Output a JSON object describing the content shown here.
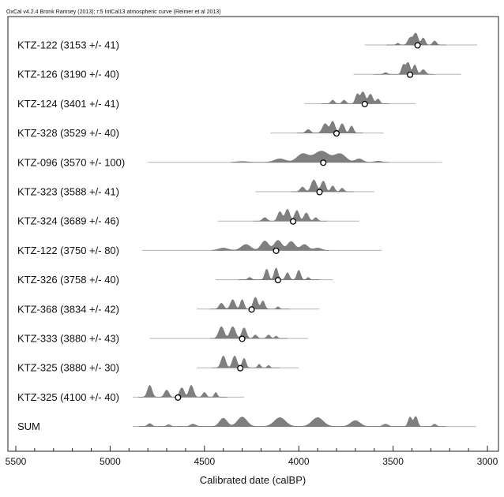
{
  "header": "OxCal v4.2.4 Bronk Ramsey (2013); r:5 IntCal13 atmospheric curve (Reimer et al 2013)",
  "chart_data": {
    "type": "multiplot",
    "xlabel": "Calibrated date (calBP)",
    "xlim": [
      5500,
      3000
    ],
    "xticks": [
      5500,
      5000,
      4500,
      4000,
      3500,
      3000
    ],
    "colors": {
      "fill": "#7f7f7f",
      "range": "#b3b3b3",
      "frame": "#222222"
    },
    "series": [
      {
        "label": "KTZ-122 (3153 +/- 41)",
        "range": [
          3650,
          3055
        ],
        "median": 3370,
        "peaks": [
          [
            3475,
            8,
            0.15
          ],
          [
            3410,
            12,
            0.6
          ],
          [
            3380,
            12,
            1.0
          ],
          [
            3340,
            10,
            0.6
          ],
          [
            3280,
            10,
            0.35
          ]
        ]
      },
      {
        "label": "KTZ-126 (3190 +/- 40)",
        "range": [
          3710,
          3140
        ],
        "median": 3410,
        "peaks": [
          [
            3540,
            10,
            0.15
          ],
          [
            3445,
            10,
            0.8
          ],
          [
            3420,
            10,
            1.0
          ],
          [
            3385,
            10,
            0.8
          ],
          [
            3340,
            12,
            0.4
          ]
        ]
      },
      {
        "label": "KTZ-124 (3401 +/- 41)",
        "range": [
          3970,
          3380
        ],
        "median": 3650,
        "peaks": [
          [
            3820,
            10,
            0.3
          ],
          [
            3760,
            10,
            0.3
          ],
          [
            3690,
            10,
            0.8
          ],
          [
            3660,
            12,
            1.0
          ],
          [
            3620,
            12,
            0.8
          ],
          [
            3580,
            10,
            0.4
          ]
        ]
      },
      {
        "label": "KTZ-328 (3529 +/- 40)",
        "range": [
          4150,
          3550
        ],
        "median": 3800,
        "peaks": [
          [
            3950,
            12,
            0.3
          ],
          [
            3860,
            14,
            0.8
          ],
          [
            3820,
            12,
            1.0
          ],
          [
            3770,
            12,
            0.8
          ],
          [
            3720,
            10,
            0.6
          ]
        ]
      },
      {
        "label": "KTZ-096 (3570 +/- 100)",
        "range": [
          4800,
          3240
        ],
        "median": 3870,
        "peaks": [
          [
            4300,
            30,
            0.08
          ],
          [
            4100,
            30,
            0.3
          ],
          [
            3980,
            30,
            0.7
          ],
          [
            3880,
            40,
            0.95
          ],
          [
            3780,
            30,
            0.7
          ],
          [
            3680,
            20,
            0.3
          ],
          [
            3580,
            20,
            0.1
          ]
        ]
      },
      {
        "label": "KTZ-323 (3588 +/- 41)",
        "range": [
          4230,
          3600
        ],
        "median": 3890,
        "peaks": [
          [
            3980,
            12,
            0.4
          ],
          [
            3920,
            14,
            1.0
          ],
          [
            3870,
            12,
            0.9
          ],
          [
            3820,
            10,
            0.5
          ],
          [
            3770,
            10,
            0.3
          ]
        ]
      },
      {
        "label": "KTZ-324 (3689 +/- 46)",
        "range": [
          4430,
          3680
        ],
        "median": 4030,
        "peaks": [
          [
            4180,
            12,
            0.3
          ],
          [
            4100,
            12,
            0.8
          ],
          [
            4060,
            12,
            1.0
          ],
          [
            4010,
            12,
            0.9
          ],
          [
            3960,
            12,
            0.7
          ],
          [
            3910,
            10,
            0.3
          ]
        ]
      },
      {
        "label": "KTZ-122 (3750 +/- 80)",
        "range": [
          4830,
          3560
        ],
        "median": 4120,
        "peaks": [
          [
            4400,
            25,
            0.2
          ],
          [
            4280,
            25,
            0.5
          ],
          [
            4180,
            20,
            0.8
          ],
          [
            4110,
            20,
            0.85
          ],
          [
            4040,
            20,
            0.75
          ],
          [
            3970,
            20,
            0.5
          ],
          [
            3900,
            20,
            0.2
          ]
        ]
      },
      {
        "label": "KTZ-326 (3758 +/- 40)",
        "range": [
          4440,
          3820
        ],
        "median": 4110,
        "peaks": [
          [
            4260,
            10,
            0.2
          ],
          [
            4170,
            10,
            0.9
          ],
          [
            4120,
            10,
            1.0
          ],
          [
            4060,
            10,
            0.6
          ],
          [
            4000,
            10,
            0.8
          ],
          [
            3950,
            8,
            0.2
          ]
        ]
      },
      {
        "label": "KTZ-368 (3834 +/- 42)",
        "range": [
          4540,
          3890
        ],
        "median": 4250,
        "peaks": [
          [
            4410,
            12,
            0.5
          ],
          [
            4350,
            12,
            0.8
          ],
          [
            4300,
            10,
            0.8
          ],
          [
            4230,
            12,
            1.0
          ],
          [
            4190,
            10,
            0.7
          ],
          [
            4110,
            8,
            0.2
          ]
        ]
      },
      {
        "label": "KTZ-333 (3880 +/- 43)",
        "range": [
          4790,
          3950
        ],
        "median": 4300,
        "peaks": [
          [
            4410,
            14,
            1.0
          ],
          [
            4350,
            14,
            1.0
          ],
          [
            4290,
            12,
            0.9
          ],
          [
            4230,
            10,
            0.3
          ],
          [
            4160,
            10,
            0.3
          ],
          [
            4120,
            8,
            0.2
          ]
        ]
      },
      {
        "label": "KTZ-325 (3880 +/- 30)",
        "range": [
          4540,
          4000
        ],
        "median": 4310,
        "peaks": [
          [
            4400,
            12,
            1.0
          ],
          [
            4340,
            12,
            1.0
          ],
          [
            4290,
            10,
            0.8
          ],
          [
            4210,
            8,
            0.3
          ],
          [
            4160,
            8,
            0.2
          ]
        ]
      },
      {
        "label": "KTZ-325 (4100 +/- 40)",
        "range": [
          4880,
          4290
        ],
        "median": 4640,
        "peaks": [
          [
            4790,
            12,
            1.0
          ],
          [
            4700,
            12,
            0.6
          ],
          [
            4620,
            12,
            0.8
          ],
          [
            4570,
            12,
            1.0
          ],
          [
            4500,
            10,
            0.4
          ],
          [
            4440,
            8,
            0.4
          ]
        ]
      },
      {
        "label": "SUM",
        "range": [
          4880,
          3060
        ],
        "median": null,
        "peaks": [
          [
            4790,
            12,
            0.25
          ],
          [
            4690,
            12,
            0.15
          ],
          [
            4560,
            15,
            0.2
          ],
          [
            4400,
            20,
            0.7
          ],
          [
            4300,
            25,
            0.8
          ],
          [
            4100,
            30,
            0.75
          ],
          [
            3900,
            30,
            0.75
          ],
          [
            3700,
            25,
            0.5
          ],
          [
            3540,
            15,
            0.2
          ],
          [
            3410,
            10,
            0.8
          ],
          [
            3380,
            10,
            0.85
          ],
          [
            3280,
            10,
            0.2
          ]
        ]
      }
    ]
  }
}
